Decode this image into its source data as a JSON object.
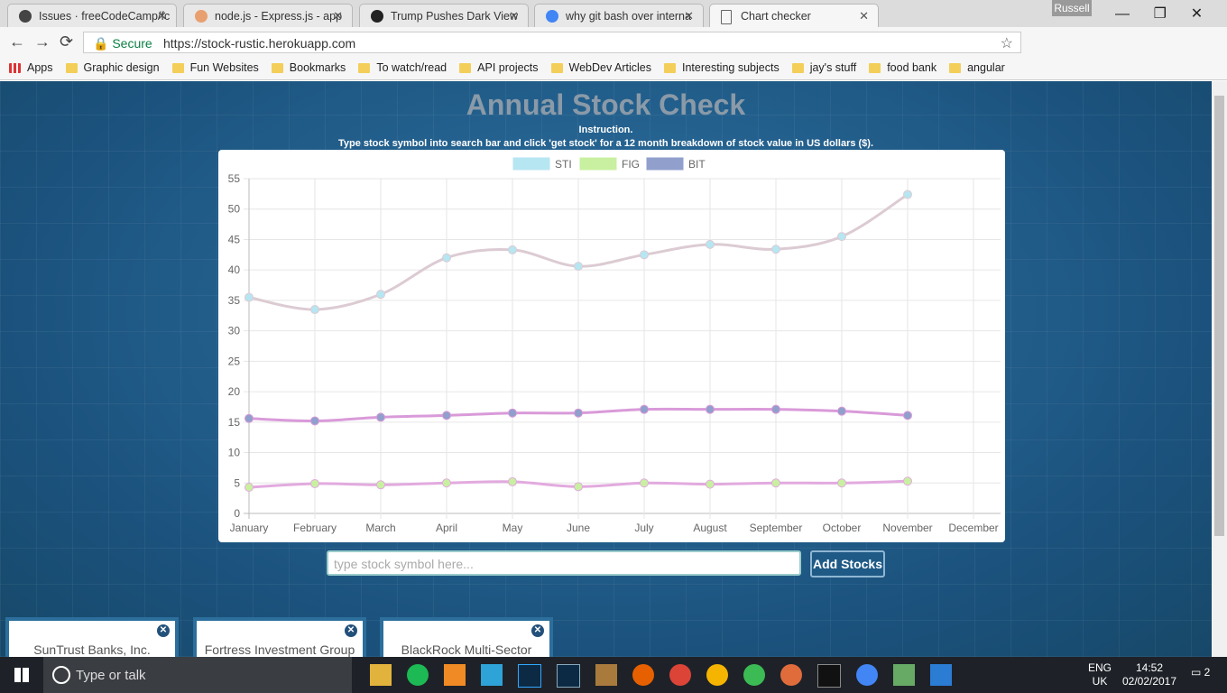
{
  "browser": {
    "tabs": [
      "Issues · freeCodeCamp/fc",
      "node.js - Express.js - app",
      "Trump Pushes Dark View",
      "why git bash over interna",
      "Chart checker"
    ],
    "user": "Russell",
    "secure": "Secure",
    "url": "https://stock-rustic.herokuapp.com",
    "bookmarks": [
      "Apps",
      "Graphic design",
      "Fun Websites",
      "Bookmarks",
      "To watch/read",
      "API projects",
      "WebDev Articles",
      "Interesting subjects",
      "jay's stuff",
      "food bank",
      "angular"
    ]
  },
  "page": {
    "title": "Annual Stock Check",
    "instruction_heading": "Instruction.",
    "instruction": "Type stock symbol into search bar and click 'get stock' for a 12 month breakdown of stock value in US dollars ($).",
    "search_placeholder": "type stock symbol here...",
    "button": "Add Stocks",
    "stocks": [
      "SunTrust Banks, Inc.",
      "Fortress Investment Group",
      "BlackRock Multi-Sector"
    ]
  },
  "chart_data": {
    "type": "line",
    "categories": [
      "January",
      "February",
      "March",
      "April",
      "May",
      "June",
      "July",
      "August",
      "September",
      "October",
      "November",
      "December"
    ],
    "series": [
      {
        "name": "STI",
        "color": "#b6e6f2",
        "line_color": "#dccbd3",
        "values": [
          35.5,
          33.5,
          36,
          42,
          43.3,
          40.6,
          42.5,
          44.2,
          43.4,
          45.5,
          52.4,
          null
        ]
      },
      {
        "name": "FIG",
        "color": "#c8f0a0",
        "line_color": "#e2aadf",
        "values": [
          4.3,
          4.9,
          4.7,
          5.0,
          5.2,
          4.4,
          5.0,
          4.8,
          5.0,
          5.0,
          5.3,
          null
        ]
      },
      {
        "name": "BIT",
        "color": "#909fcc",
        "line_color": "#d99ad9",
        "values": [
          15.6,
          15.2,
          15.8,
          16.1,
          16.5,
          16.5,
          17.1,
          17.1,
          17.1,
          16.8,
          16.1,
          null
        ]
      }
    ],
    "ylim": [
      0,
      55
    ],
    "yticks": [
      0,
      5,
      10,
      15,
      20,
      25,
      30,
      35,
      40,
      45,
      50,
      55
    ],
    "grid": true,
    "legend": "top"
  },
  "taskbar": {
    "search": "Type or talk",
    "language": "ENG",
    "region": "UK",
    "time": "14:52",
    "date": "02/02/2017",
    "notifications": 2
  }
}
